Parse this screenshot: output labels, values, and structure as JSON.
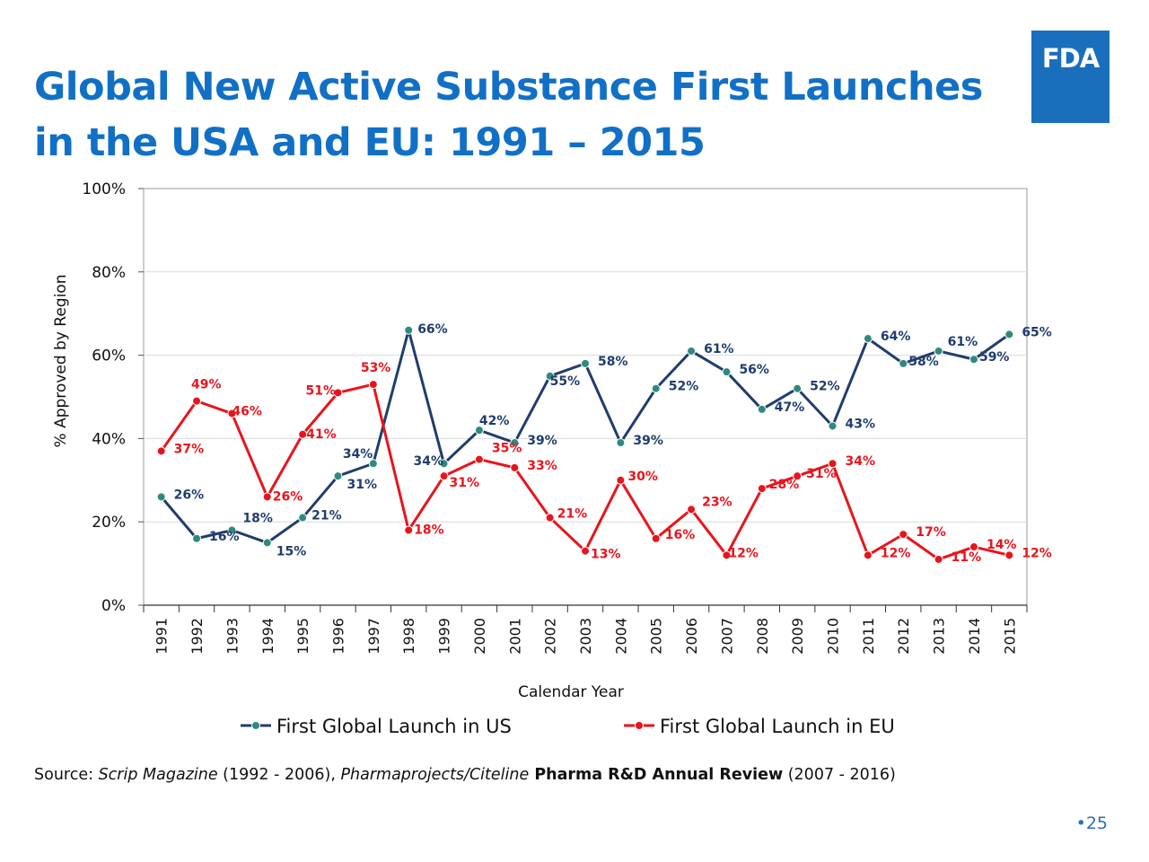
{
  "title_line1": "Global New Active Substance First Launches",
  "title_line2": "in the USA and EU: 1991 – 2015",
  "logo_text": "FDA",
  "source": {
    "prefix": "Source: ",
    "scrip": "Scrip Magazine",
    "scrip_years": " (1992 - 2006), ",
    "pharmaprojects": "Pharmaprojects/Citeline",
    "review": " Pharma R&D Annual Review",
    "review_years": " (2007 - 2016)"
  },
  "page_number": "•25",
  "chart_data": {
    "type": "line",
    "title": "",
    "xlabel": "Calendar Year",
    "ylabel": "% Approved by Region",
    "ylim": [
      0,
      100
    ],
    "yticks": [
      "0%",
      "20%",
      "40%",
      "60%",
      "80%",
      "100%"
    ],
    "grid": true,
    "legend_position": "bottom",
    "x": [
      1991,
      1992,
      1993,
      1994,
      1995,
      1996,
      1997,
      1998,
      1999,
      2000,
      2001,
      2002,
      2003,
      2004,
      2005,
      2006,
      2007,
      2008,
      2009,
      2010,
      2011,
      2012,
      2013,
      2014,
      2015
    ],
    "series": [
      {
        "name": "First Global Launch in US",
        "color": "#1f3d6e",
        "marker_fill": "#2e8a7e",
        "values": [
          26,
          16,
          18,
          15,
          21,
          31,
          34,
          66,
          34,
          42,
          39,
          55,
          58,
          39,
          52,
          61,
          56,
          47,
          52,
          43,
          64,
          58,
          61,
          59,
          65
        ],
        "labels": [
          "26%",
          "16%",
          "18%",
          "15%",
          "21%",
          "31%",
          "34%",
          "66%",
          "34%",
          "42%",
          "39%",
          "55%",
          "58%",
          "39%",
          "52%",
          "61%",
          "56%",
          "47%",
          "52%",
          "43%",
          "64%",
          "58%",
          "61%",
          "59%",
          "65%"
        ]
      },
      {
        "name": "First Global Launch in EU",
        "color": "#e8141c",
        "marker_fill": "#e8141c",
        "values": [
          37,
          49,
          46,
          26,
          41,
          51,
          53,
          18,
          31,
          35,
          33,
          21,
          13,
          30,
          16,
          23,
          12,
          28,
          31,
          34,
          12,
          17,
          11,
          14,
          12
        ],
        "labels": [
          "37%",
          "49%",
          "46%",
          "26%",
          "41%",
          "51%",
          "53%",
          "18%",
          "31%",
          "35%",
          "33%",
          "21%",
          "13%",
          "30%",
          "16%",
          "23%",
          "12%",
          "28%",
          "31%",
          "34%",
          "12%",
          "17%",
          "11%",
          "14%",
          "12%"
        ]
      }
    ]
  }
}
